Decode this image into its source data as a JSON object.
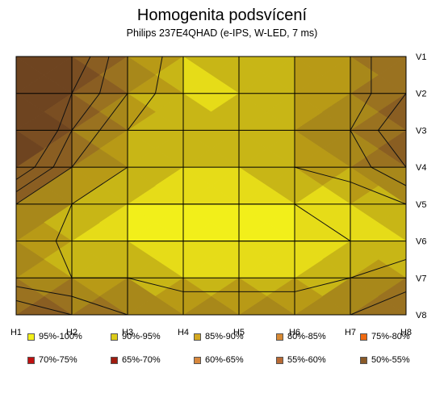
{
  "chart_data": {
    "type": "heatmap",
    "title": "Homogenita podsvícení",
    "subtitle": "Philips 237E4QHAD  (e-IPS, W-LED, 7 ms)",
    "x_ticks": [
      "H1",
      "H2",
      "H3",
      "H4",
      "H5",
      "H6",
      "H7",
      "H8"
    ],
    "y_ticks": [
      "V1",
      "V2",
      "V3",
      "V4",
      "V5",
      "V6",
      "V7",
      "V8"
    ],
    "grid": true,
    "legend_position": "bottom",
    "legend": [
      {
        "label": "95%-100%",
        "color": "#f2ef1a"
      },
      {
        "label": "90%-95%",
        "color": "#dccb18"
      },
      {
        "label": "85%-90%",
        "color": "#d4a820"
      },
      {
        "label": "80%-85%",
        "color": "#d88a34"
      },
      {
        "label": "75%-80%",
        "color": "#f06a10"
      },
      {
        "label": "70%-75%",
        "color": "#c01010"
      },
      {
        "label": "65%-70%",
        "color": "#a01c10"
      },
      {
        "label": "60%-65%",
        "color": "#d8883c"
      },
      {
        "label": "55%-60%",
        "color": "#b86a34"
      },
      {
        "label": "50%-55%",
        "color": "#8a5a28"
      }
    ],
    "values": [
      [
        50,
        70,
        85,
        93,
        90,
        90,
        88,
        80
      ],
      [
        60,
        75,
        85,
        95,
        93,
        90,
        88,
        80
      ],
      [
        60,
        80,
        90,
        90,
        93,
        90,
        85,
        75
      ],
      [
        70,
        85,
        90,
        93,
        93,
        90,
        88,
        80
      ],
      [
        85,
        90,
        95,
        95,
        95,
        95,
        93,
        90
      ],
      [
        85,
        92,
        95,
        95,
        95,
        95,
        95,
        92
      ],
      [
        88,
        90,
        90,
        93,
        93,
        93,
        90,
        88
      ],
      [
        75,
        80,
        85,
        85,
        85,
        85,
        85,
        80
      ]
    ]
  }
}
